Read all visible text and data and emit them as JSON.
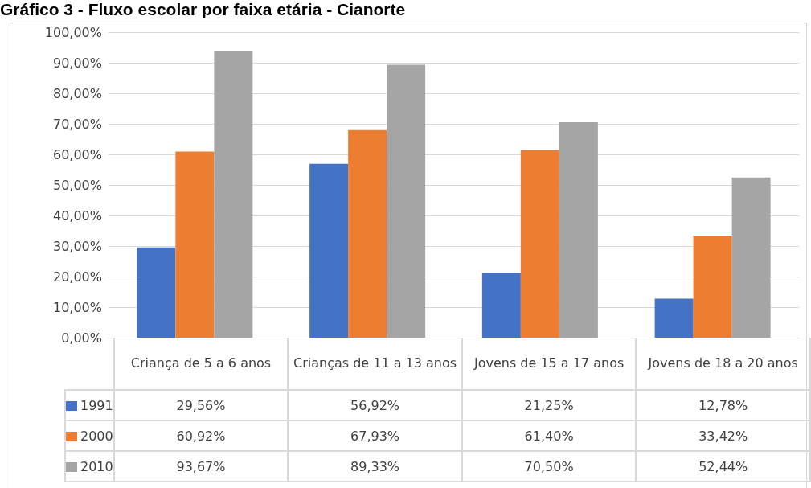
{
  "chart_data": {
    "type": "bar",
    "title": "Gráfico 3 - Fluxo escolar por faixa etária - Cianorte",
    "categories": [
      "Criança de 5 a 6 anos",
      "Crianças de 11 a 13 anos",
      "Jovens de 15 a 17 anos",
      "Jovens de 18 a 20 anos"
    ],
    "series": [
      {
        "name": "1991",
        "color": "#4472c4",
        "values": [
          29.56,
          56.92,
          21.25,
          12.78
        ],
        "value_labels": [
          "29,56%",
          "56,92%",
          "21,25%",
          "12,78%"
        ]
      },
      {
        "name": "2000",
        "color": "#ed7d31",
        "values": [
          60.92,
          67.93,
          61.4,
          33.42
        ],
        "value_labels": [
          "60,92%",
          "67,93%",
          "61,40%",
          "33,42%"
        ]
      },
      {
        "name": "2010",
        "color": "#a5a5a5",
        "values": [
          93.67,
          89.33,
          70.5,
          52.44
        ],
        "value_labels": [
          "93,67%",
          "89,33%",
          "70,50%",
          "52,44%"
        ]
      }
    ],
    "ylim": [
      0,
      100
    ],
    "yticks": [
      {
        "value": 0,
        "label": "0,00%"
      },
      {
        "value": 10,
        "label": "10,00%"
      },
      {
        "value": 20,
        "label": "20,00%"
      },
      {
        "value": 30,
        "label": "30,00%"
      },
      {
        "value": 40,
        "label": "40,00%"
      },
      {
        "value": 50,
        "label": "50,00%"
      },
      {
        "value": 60,
        "label": "60,00%"
      },
      {
        "value": 70,
        "label": "70,00%"
      },
      {
        "value": 80,
        "label": "80,00%"
      },
      {
        "value": 90,
        "label": "90,00%"
      },
      {
        "value": 100,
        "label": "100,00%"
      }
    ],
    "grid": "y",
    "legend": "bottom"
  }
}
